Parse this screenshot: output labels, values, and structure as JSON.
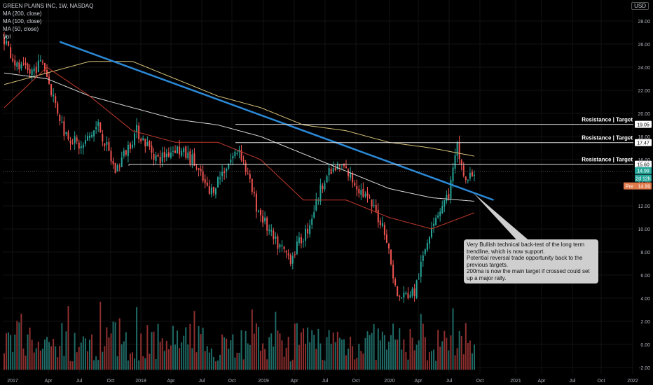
{
  "legend": {
    "title": "GREEN PLAINS INC, 1W, NASDAQ",
    "ma200": "MA (200, close)",
    "ma100": "MA (100, close)",
    "ma50": "MA (50, close)",
    "vol": "Vol"
  },
  "currency": "USD",
  "annotation": {
    "lines": [
      "Very Bullish technical back-test of the long term",
      "trendline, which is now support.",
      "Potential reversal trade opportunity back to the",
      "previous targets.",
      "200ma is now the main target if crossed could set",
      "up a major rally."
    ]
  },
  "chart_data": {
    "type": "candlestick",
    "ylim": [
      -2.5,
      29
    ],
    "y_ticks": [
      28,
      26,
      24,
      22,
      20,
      18,
      16,
      14,
      12,
      10,
      8,
      6,
      4,
      2,
      0,
      -2
    ],
    "y_tick_labels": [
      "28.00",
      "26.00",
      "24.00",
      "22.00",
      "20.00",
      "18.00",
      "16.00",
      "14.00",
      "12.00",
      "10.00",
      "8.00",
      "6.00",
      "4.00",
      "2.00",
      "0.00",
      "-2.00"
    ],
    "x_ticks": [
      "2017",
      "Apr",
      "Jul",
      "Oct",
      "2018",
      "Apr",
      "Jul",
      "Oct",
      "2019",
      "Apr",
      "Jul",
      "Oct",
      "2020",
      "Apr",
      "Jul",
      "Oct",
      "2021",
      "Apr",
      "Jul",
      "Oct",
      "2022"
    ],
    "price_anchors": [
      [
        0,
        26.5
      ],
      [
        6,
        24
      ],
      [
        12,
        23.5
      ],
      [
        18,
        24.5
      ],
      [
        22,
        22
      ],
      [
        28,
        18.5
      ],
      [
        36,
        17
      ],
      [
        44,
        19
      ],
      [
        52,
        15
      ],
      [
        62,
        18.5
      ],
      [
        72,
        16
      ],
      [
        80,
        17
      ],
      [
        88,
        16
      ],
      [
        96,
        13
      ],
      [
        104,
        15.5
      ],
      [
        110,
        17
      ],
      [
        118,
        12
      ],
      [
        126,
        9
      ],
      [
        134,
        7.5
      ],
      [
        142,
        10
      ],
      [
        150,
        14.5
      ],
      [
        158,
        15.5
      ],
      [
        166,
        13.5
      ],
      [
        172,
        12
      ],
      [
        178,
        10
      ],
      [
        184,
        4
      ],
      [
        192,
        4.5
      ],
      [
        200,
        10.5
      ],
      [
        208,
        13
      ],
      [
        212,
        17
      ],
      [
        216,
        14
      ],
      [
        220,
        14.99
      ]
    ],
    "ma200_anchors": [
      [
        0,
        22.5
      ],
      [
        20,
        23.5
      ],
      [
        40,
        24.5
      ],
      [
        60,
        24.5
      ],
      [
        80,
        23
      ],
      [
        100,
        21.5
      ],
      [
        120,
        20.5
      ],
      [
        140,
        19
      ],
      [
        160,
        18.5
      ],
      [
        180,
        17.5
      ],
      [
        200,
        17
      ],
      [
        220,
        16.3
      ]
    ],
    "ma100_anchors": [
      [
        0,
        23.5
      ],
      [
        20,
        23
      ],
      [
        40,
        21.5
      ],
      [
        60,
        20.5
      ],
      [
        80,
        19.5
      ],
      [
        100,
        19
      ],
      [
        120,
        18
      ],
      [
        140,
        16.5
      ],
      [
        160,
        15
      ],
      [
        180,
        13.5
      ],
      [
        200,
        12.7
      ],
      [
        220,
        12.4
      ]
    ],
    "ma50_anchors": [
      [
        0,
        20.5
      ],
      [
        20,
        24
      ],
      [
        40,
        21.5
      ],
      [
        60,
        18.5
      ],
      [
        80,
        17.5
      ],
      [
        100,
        17.5
      ],
      [
        120,
        16
      ],
      [
        140,
        12.5
      ],
      [
        160,
        12.5
      ],
      [
        180,
        11
      ],
      [
        200,
        10
      ],
      [
        220,
        11.4
      ]
    ],
    "trendline": [
      [
        26,
        26.2
      ],
      [
        229,
        12.5
      ]
    ],
    "levels": [
      {
        "value": 19.05,
        "label": "Resistance | Target",
        "tag": "19.05",
        "start_bar": 0
      },
      {
        "value": 17.47,
        "label": "Resistance | Target",
        "tag": "17.47",
        "start_bar": 0
      },
      {
        "value": 15.6,
        "label": "Resistance | Target",
        "tag": "15.60",
        "start_bar": 60
      }
    ],
    "current_price": 14.99,
    "tags": {
      "last": "14.99",
      "countdown": "2d 12h",
      "pre": "Pre",
      "pre_value": "14.99"
    },
    "num_bars": 222
  },
  "colors": {
    "up": "#26a69a",
    "down": "#ef5350",
    "vol_up": "#1f6b66",
    "vol_down": "#8e2f2f",
    "ma200": "#d8c27a",
    "ma100": "#d9d9d9",
    "ma50": "#c0392b",
    "trendline": "#2b8ad8",
    "level": "#e0e0e0",
    "price_tag": "#26a69a",
    "pre_tag": "#e07a4a"
  }
}
